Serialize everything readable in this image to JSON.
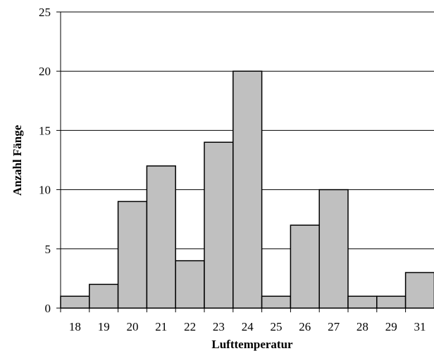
{
  "chart_data": {
    "type": "bar",
    "title": "",
    "xlabel": "Lufttemperatur",
    "ylabel": "Anzahl Fänge",
    "categories": [
      "18",
      "19",
      "20",
      "21",
      "22",
      "23",
      "24",
      "25",
      "26",
      "27",
      "28",
      "29",
      "31"
    ],
    "values": [
      1,
      2,
      9,
      12,
      4,
      14,
      20,
      1,
      7,
      10,
      1,
      1,
      3
    ],
    "ylim": [
      0,
      25
    ],
    "yticks": [
      0,
      5,
      10,
      15,
      20,
      25
    ],
    "grid": true,
    "legend": "none",
    "colors": {
      "bar_fill": "#c0c0c0",
      "bar_stroke": "#000000",
      "grid": "#000000",
      "axis": "#000000"
    }
  }
}
